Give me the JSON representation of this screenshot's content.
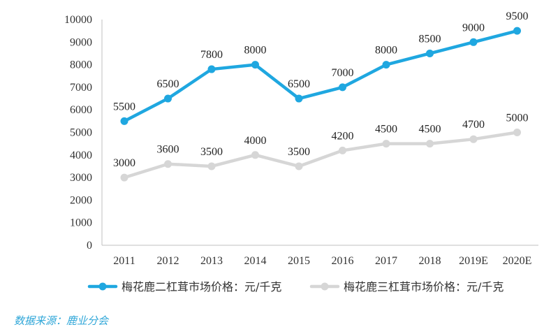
{
  "chart_data": {
    "type": "line",
    "categories": [
      "2011",
      "2012",
      "2013",
      "2014",
      "2015",
      "2016",
      "2017",
      "2018",
      "2019E",
      "2020E"
    ],
    "series": [
      {
        "name": "梅花鹿二杠茸市场价格：元/千克",
        "color": "#1fa7e0",
        "values": [
          5500,
          6500,
          7800,
          8000,
          6500,
          7000,
          8000,
          8500,
          9000,
          9500
        ]
      },
      {
        "name": "梅花鹿三杠茸市场价格：元/千克",
        "color": "#d6d6d6",
        "values": [
          3000,
          3600,
          3500,
          4000,
          3500,
          4200,
          4500,
          4500,
          4700,
          5000
        ]
      }
    ],
    "ylim": [
      0,
      10000
    ],
    "yticks": [
      0,
      1000,
      2000,
      3000,
      4000,
      5000,
      6000,
      7000,
      8000,
      9000,
      10000
    ],
    "grid": false,
    "legend": "bottom"
  },
  "source": "数据来源：鹿业分会"
}
